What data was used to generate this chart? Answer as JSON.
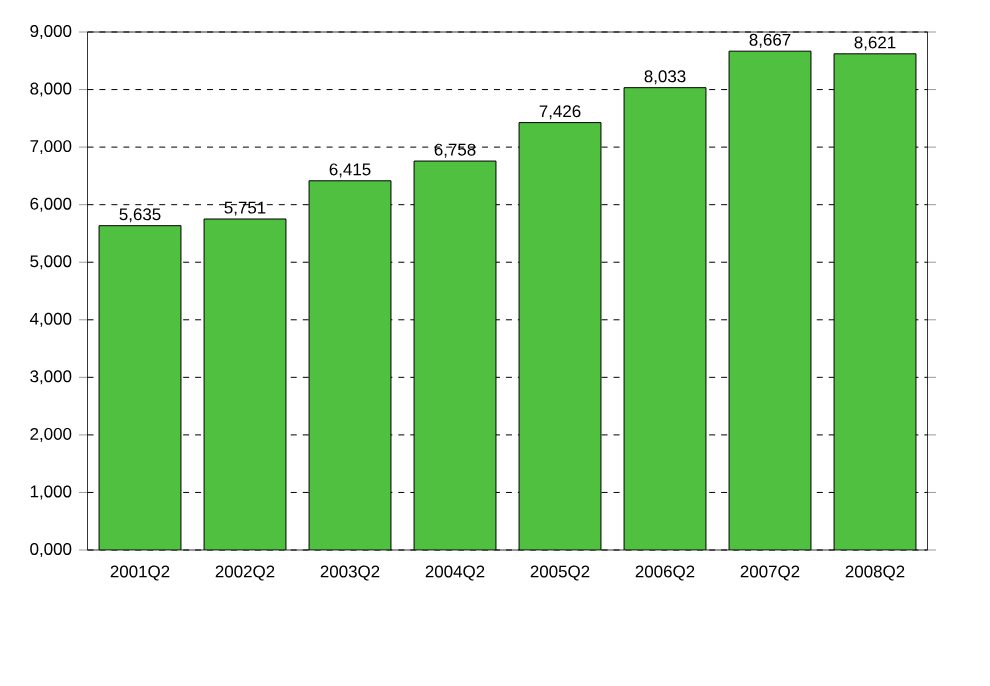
{
  "chart_data": {
    "type": "bar",
    "categories": [
      "2001Q2",
      "2002Q2",
      "2003Q2",
      "2004Q2",
      "2005Q2",
      "2006Q2",
      "2007Q2",
      "2008Q2"
    ],
    "values": [
      5635,
      5751,
      6415,
      6758,
      7426,
      8033,
      8667,
      8621
    ],
    "value_labels": [
      "5,635",
      "5,751",
      "6,415",
      "6,758",
      "7,426",
      "8,033",
      "8,667",
      "8,621"
    ],
    "color": "#50c040",
    "ylim": [
      0,
      9000
    ],
    "yticks": [
      {
        "value": 0,
        "label": "0,000"
      },
      {
        "value": 1000,
        "label": "1,000"
      },
      {
        "value": 2000,
        "label": "2,000"
      },
      {
        "value": 3000,
        "label": "3,000"
      },
      {
        "value": 4000,
        "label": "4,000"
      },
      {
        "value": 5000,
        "label": "5,000"
      },
      {
        "value": 6000,
        "label": "6,000"
      },
      {
        "value": 7000,
        "label": "7,000"
      },
      {
        "value": 8000,
        "label": "8,000"
      },
      {
        "value": 9000,
        "label": "9,000"
      }
    ],
    "grid": "y"
  }
}
